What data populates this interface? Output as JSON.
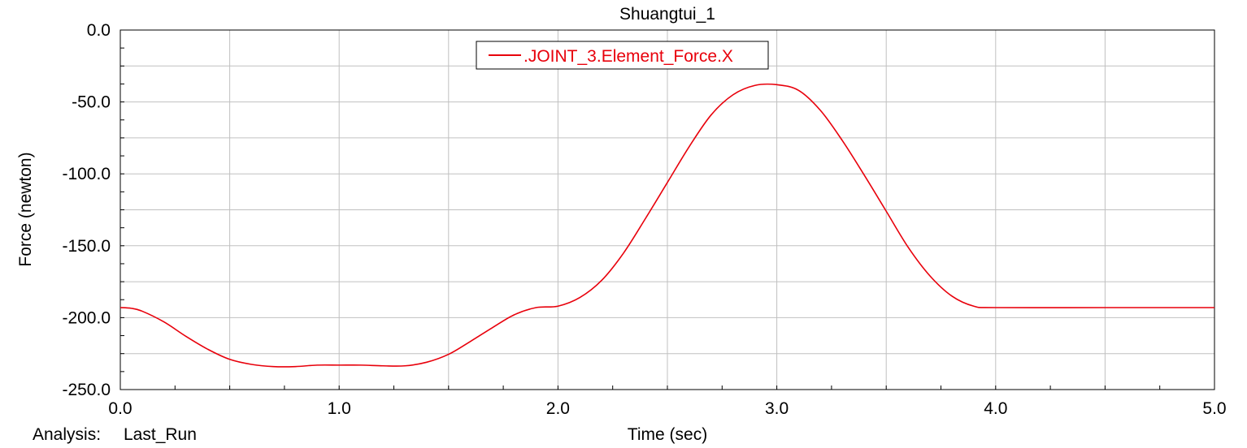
{
  "chart_data": {
    "type": "line",
    "title": "Shuangtui_1",
    "xlabel": "Time (sec)",
    "ylabel": "Force (newton)",
    "xlim": [
      0.0,
      5.0
    ],
    "ylim": [
      -250.0,
      0.0
    ],
    "x_ticks": [
      "0.0",
      "1.0",
      "2.0",
      "3.0",
      "4.0",
      "5.0"
    ],
    "y_ticks": [
      "0.0",
      "-50.0",
      "-100.0",
      "-150.0",
      "-200.0",
      "-250.0"
    ],
    "grid": true,
    "legend_position": "top-center",
    "series": [
      {
        "name": ".JOINT_3.Element_Force.X",
        "color": "#e8000b",
        "x": [
          0.0,
          0.05,
          0.1,
          0.2,
          0.3,
          0.4,
          0.5,
          0.6,
          0.7,
          0.8,
          0.9,
          1.0,
          1.1,
          1.2,
          1.3,
          1.4,
          1.5,
          1.6,
          1.7,
          1.8,
          1.9,
          2.0,
          2.1,
          2.2,
          2.3,
          2.4,
          2.5,
          2.6,
          2.7,
          2.8,
          2.9,
          3.0,
          3.1,
          3.2,
          3.3,
          3.4,
          3.5,
          3.6,
          3.7,
          3.8,
          3.9,
          4.0,
          4.5,
          5.0
        ],
        "y": [
          -193.0,
          -193.5,
          -195.5,
          -203.0,
          -213.0,
          -222.0,
          -229.0,
          -232.5,
          -234.0,
          -234.0,
          -233.0,
          -233.0,
          -233.0,
          -233.5,
          -233.5,
          -231.0,
          -225.5,
          -216.5,
          -207.0,
          -198.0,
          -193.0,
          -192.0,
          -186.0,
          -174.0,
          -155.0,
          -131.0,
          -106.0,
          -81.0,
          -59.0,
          -45.0,
          -38.5,
          -38.0,
          -42.0,
          -56.0,
          -77.0,
          -101.0,
          -126.0,
          -151.0,
          -171.0,
          -185.0,
          -192.0,
          -193.0,
          -193.0,
          -193.0
        ]
      }
    ]
  },
  "footer": {
    "analysis_label": "Analysis:",
    "analysis_value": "Last_Run"
  }
}
